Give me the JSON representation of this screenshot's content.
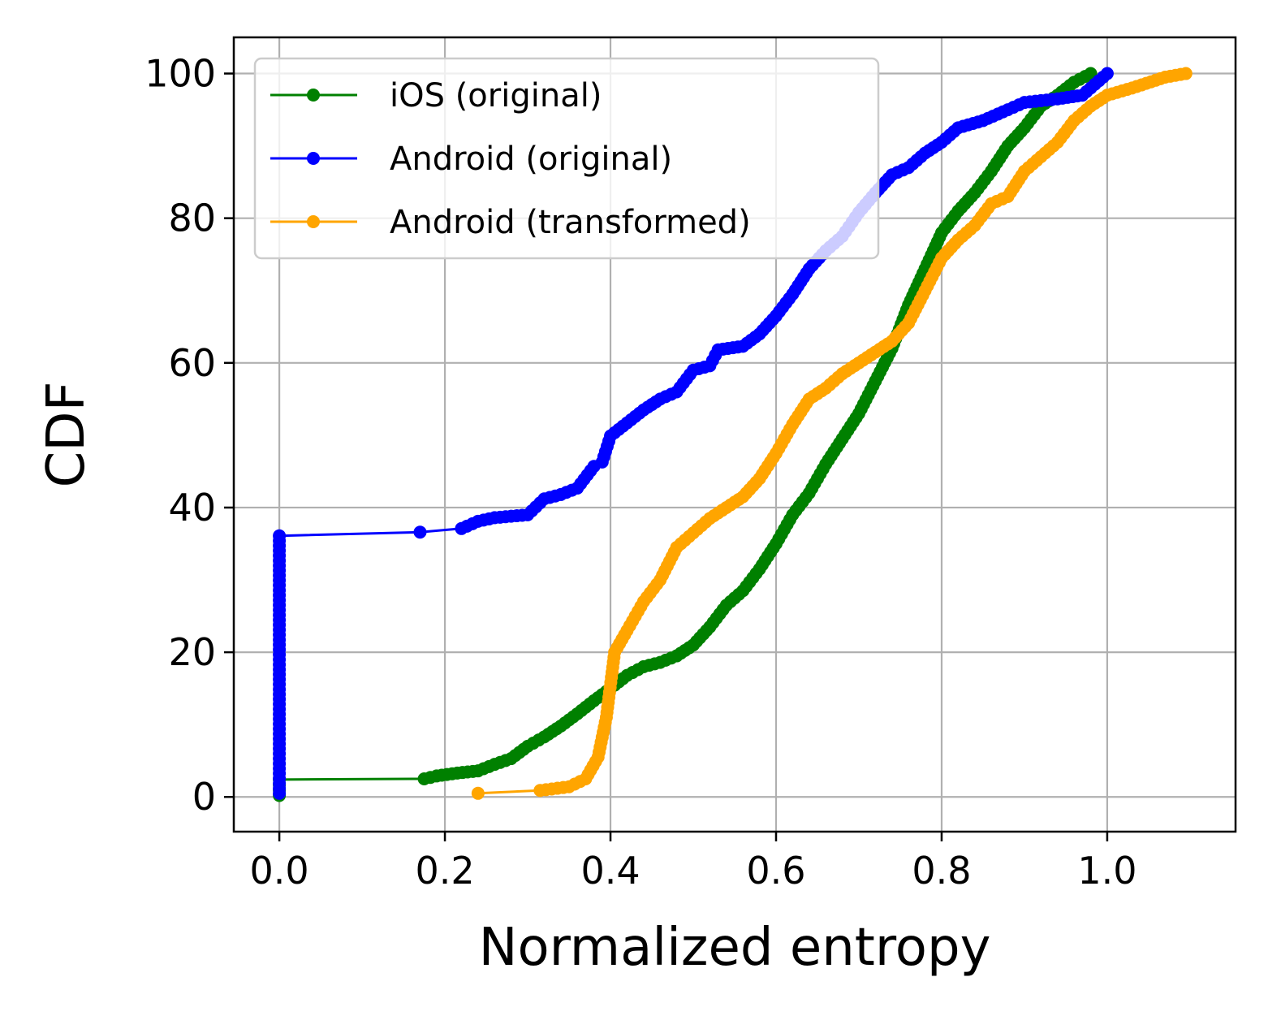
{
  "chart_data": {
    "type": "line",
    "xlabel": "Normalized entropy",
    "ylabel": "CDF",
    "xlim": [
      -0.055,
      1.155
    ],
    "ylim": [
      -4.8,
      105
    ],
    "x_ticks": [
      0.0,
      0.2,
      0.4,
      0.6,
      0.8,
      1.0
    ],
    "x_tick_labels": [
      "0.0",
      "0.2",
      "0.4",
      "0.6",
      "0.8",
      "1.0"
    ],
    "y_ticks": [
      0,
      20,
      40,
      60,
      80,
      100
    ],
    "y_tick_labels": [
      "0",
      "20",
      "40",
      "60",
      "80",
      "100"
    ],
    "grid": true,
    "legend_position": "upper-left",
    "series": [
      {
        "name": "iOS (original)",
        "color": "#008000",
        "points": [
          [
            0.0,
            0.2
          ],
          [
            0.0,
            2.4
          ],
          [
            0.175,
            2.5
          ],
          [
            0.19,
            2.9
          ],
          [
            0.215,
            3.3
          ],
          [
            0.24,
            3.6
          ],
          [
            0.26,
            4.5
          ],
          [
            0.28,
            5.3
          ],
          [
            0.3,
            7.0
          ],
          [
            0.32,
            8.3
          ],
          [
            0.34,
            9.8
          ],
          [
            0.36,
            11.5
          ],
          [
            0.38,
            13.3
          ],
          [
            0.4,
            15.0
          ],
          [
            0.42,
            16.8
          ],
          [
            0.44,
            18.0
          ],
          [
            0.46,
            18.6
          ],
          [
            0.48,
            19.5
          ],
          [
            0.5,
            21.0
          ],
          [
            0.52,
            23.5
          ],
          [
            0.54,
            26.5
          ],
          [
            0.56,
            28.5
          ],
          [
            0.58,
            31.5
          ],
          [
            0.6,
            35.0
          ],
          [
            0.62,
            39.0
          ],
          [
            0.64,
            42.0
          ],
          [
            0.66,
            46.0
          ],
          [
            0.68,
            49.5
          ],
          [
            0.7,
            53.0
          ],
          [
            0.72,
            57.5
          ],
          [
            0.74,
            62.0
          ],
          [
            0.76,
            68.0
          ],
          [
            0.78,
            73.0
          ],
          [
            0.8,
            78.0
          ],
          [
            0.82,
            81.0
          ],
          [
            0.84,
            83.5
          ],
          [
            0.86,
            86.5
          ],
          [
            0.88,
            90.0
          ],
          [
            0.9,
            92.5
          ],
          [
            0.92,
            95.5
          ],
          [
            0.94,
            97.0
          ],
          [
            0.96,
            98.8
          ],
          [
            0.98,
            100.0
          ]
        ]
      },
      {
        "name": "Android (original)",
        "color": "#0000ff",
        "points": [
          [
            0.0,
            0.5
          ],
          [
            0.0,
            36.1
          ],
          [
            0.17,
            36.6
          ],
          [
            0.22,
            37.1
          ],
          [
            0.24,
            38.1
          ],
          [
            0.26,
            38.6
          ],
          [
            0.3,
            39.0
          ],
          [
            0.32,
            41.2
          ],
          [
            0.34,
            41.8
          ],
          [
            0.36,
            42.7
          ],
          [
            0.38,
            45.7
          ],
          [
            0.39,
            46.3
          ],
          [
            0.4,
            49.9
          ],
          [
            0.42,
            51.7
          ],
          [
            0.44,
            53.5
          ],
          [
            0.46,
            55.0
          ],
          [
            0.48,
            56.0
          ],
          [
            0.5,
            59.0
          ],
          [
            0.52,
            59.6
          ],
          [
            0.53,
            61.8
          ],
          [
            0.56,
            62.3
          ],
          [
            0.58,
            64.0
          ],
          [
            0.6,
            66.5
          ],
          [
            0.62,
            69.5
          ],
          [
            0.64,
            73.0
          ],
          [
            0.66,
            75.5
          ],
          [
            0.68,
            77.5
          ],
          [
            0.7,
            80.8
          ],
          [
            0.72,
            83.5
          ],
          [
            0.74,
            86.0
          ],
          [
            0.76,
            87.0
          ],
          [
            0.78,
            89.0
          ],
          [
            0.8,
            90.5
          ],
          [
            0.82,
            92.5
          ],
          [
            0.85,
            93.5
          ],
          [
            0.88,
            95.0
          ],
          [
            0.9,
            96.0
          ],
          [
            0.94,
            96.5
          ],
          [
            0.97,
            97.0
          ],
          [
            0.99,
            99.0
          ],
          [
            1.0,
            100.0
          ]
        ]
      },
      {
        "name": "Android (transformed)",
        "color": "#ffa500",
        "points": [
          [
            0.24,
            0.5
          ],
          [
            0.315,
            0.9
          ],
          [
            0.35,
            1.4
          ],
          [
            0.37,
            2.5
          ],
          [
            0.385,
            5.5
          ],
          [
            0.395,
            11.0
          ],
          [
            0.405,
            20.0
          ],
          [
            0.42,
            23.0
          ],
          [
            0.44,
            27.0
          ],
          [
            0.46,
            30.0
          ],
          [
            0.48,
            34.5
          ],
          [
            0.5,
            36.5
          ],
          [
            0.52,
            38.5
          ],
          [
            0.54,
            40.0
          ],
          [
            0.56,
            41.5
          ],
          [
            0.58,
            44.0
          ],
          [
            0.6,
            47.5
          ],
          [
            0.62,
            51.5
          ],
          [
            0.64,
            55.0
          ],
          [
            0.66,
            56.5
          ],
          [
            0.68,
            58.5
          ],
          [
            0.7,
            60.0
          ],
          [
            0.72,
            61.5
          ],
          [
            0.74,
            63.0
          ],
          [
            0.76,
            65.5
          ],
          [
            0.78,
            70.0
          ],
          [
            0.8,
            74.5
          ],
          [
            0.82,
            77.0
          ],
          [
            0.84,
            79.0
          ],
          [
            0.86,
            82.0
          ],
          [
            0.88,
            83.0
          ],
          [
            0.9,
            86.5
          ],
          [
            0.92,
            88.5
          ],
          [
            0.94,
            90.5
          ],
          [
            0.96,
            93.5
          ],
          [
            0.98,
            95.5
          ],
          [
            1.0,
            97.0
          ],
          [
            1.03,
            98.0
          ],
          [
            1.07,
            99.5
          ],
          [
            1.095,
            100.0
          ]
        ]
      }
    ]
  }
}
